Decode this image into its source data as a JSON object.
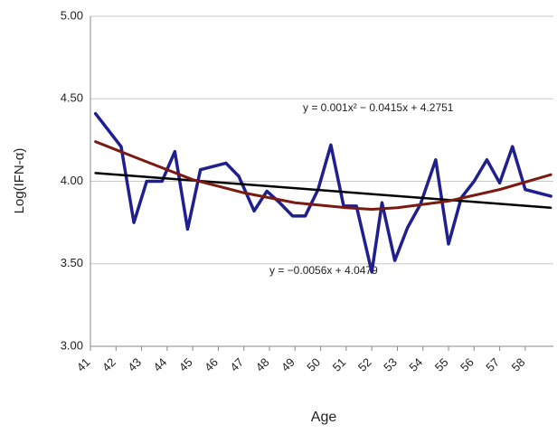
{
  "chart_data": {
    "type": "line",
    "x_label": "Age",
    "y_label": "Log(IFN-α)",
    "annotations": [
      "y = 0.001x² − 0.0415x + 4.2751",
      "y = −0.0056x + 4.0479"
    ],
    "xlim": [
      41,
      59.1
    ],
    "xticks": [
      41,
      42,
      43,
      44,
      45,
      46,
      47,
      48,
      49,
      50,
      51,
      52,
      53,
      54,
      55,
      56,
      57,
      58
    ],
    "ylim": [
      3,
      5
    ],
    "yticks": [
      {
        "value": 3,
        "label": "3.00"
      },
      {
        "value": 3.5,
        "label": "3.50"
      },
      {
        "value": 4,
        "label": "4.00"
      },
      {
        "value": 4.5,
        "label": "4.50"
      },
      {
        "value": 5,
        "label": "5.00"
      }
    ],
    "grid": true,
    "series": [
      {
        "color": "#1f1f8f",
        "width": 3.5,
        "x": [
          41.2,
          42.2,
          42.7,
          43.2,
          43.8,
          44.3,
          44.8,
          45.3,
          46.3,
          46.8,
          47.4,
          47.9,
          48.4,
          48.9,
          49.4,
          49.9,
          50.4,
          50.9,
          51.4,
          52.0,
          52.4,
          52.9,
          53.4,
          53.9,
          54.5,
          55.0,
          55.5,
          56.0,
          56.5,
          57.0,
          57.5,
          58.0,
          59.0
        ],
        "values": [
          4.41,
          4.21,
          3.75,
          4.0,
          4.0,
          4.18,
          3.71,
          4.07,
          4.11,
          4.03,
          3.82,
          3.94,
          3.87,
          3.79,
          3.79,
          3.95,
          4.22,
          3.85,
          3.85,
          3.45,
          3.87,
          3.52,
          3.72,
          3.86,
          4.13,
          3.62,
          3.9,
          4.0,
          4.13,
          3.99,
          4.21,
          3.95,
          3.91
        ]
      },
      {
        "color": "#000000",
        "width": 2.5,
        "x": [
          41.2,
          59.0
        ],
        "values": [
          4.05,
          3.84
        ]
      },
      {
        "color": "#7a1a10",
        "width": 3,
        "x": [
          41.2,
          43,
          45,
          47,
          49,
          51,
          52,
          53,
          55,
          57,
          59
        ],
        "values": [
          4.24,
          4.13,
          4.01,
          3.93,
          3.87,
          3.84,
          3.83,
          3.84,
          3.88,
          3.95,
          4.04
        ]
      }
    ]
  }
}
